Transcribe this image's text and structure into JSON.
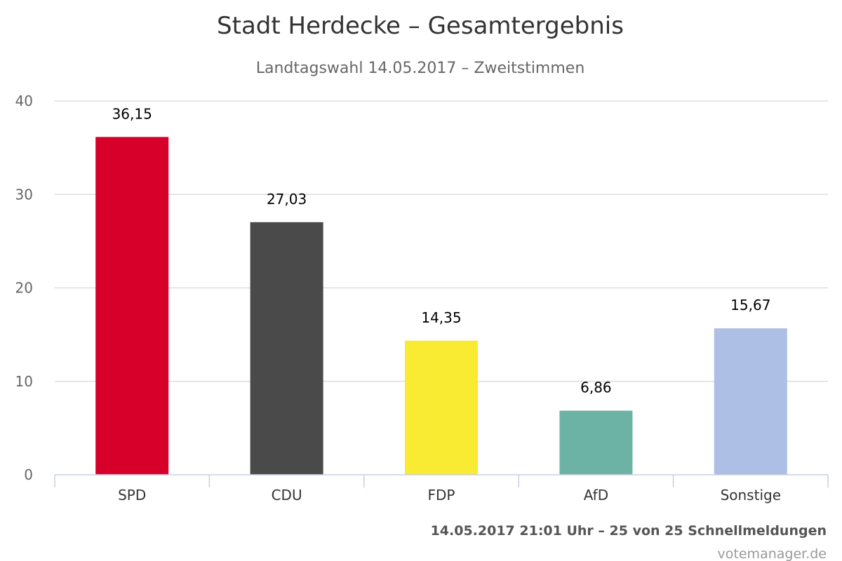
{
  "chart_data": {
    "type": "bar",
    "title": "Stadt Herdecke – Gesamtergebnis",
    "subtitle": "Landtagswahl 14.05.2017 – Zweitstimmen",
    "categories": [
      "SPD",
      "CDU",
      "FDP",
      "AfD",
      "Sonstige"
    ],
    "values": [
      36.15,
      27.03,
      14.35,
      6.86,
      15.67
    ],
    "value_labels": [
      "36,15",
      "27,03",
      "14,35",
      "6,86",
      "15,67"
    ],
    "colors": [
      "#d6002a",
      "#4a4a4a",
      "#f9ea32",
      "#6db3a5",
      "#adbfe4"
    ],
    "yticks": [
      0,
      10,
      20,
      30,
      40
    ],
    "ylim": [
      0,
      40
    ],
    "grid": true,
    "legend": "none"
  },
  "footer": {
    "status": "14.05.2017 21:01 Uhr – 25 von 25 Schnellmeldungen",
    "credit": "votemanager.de"
  }
}
